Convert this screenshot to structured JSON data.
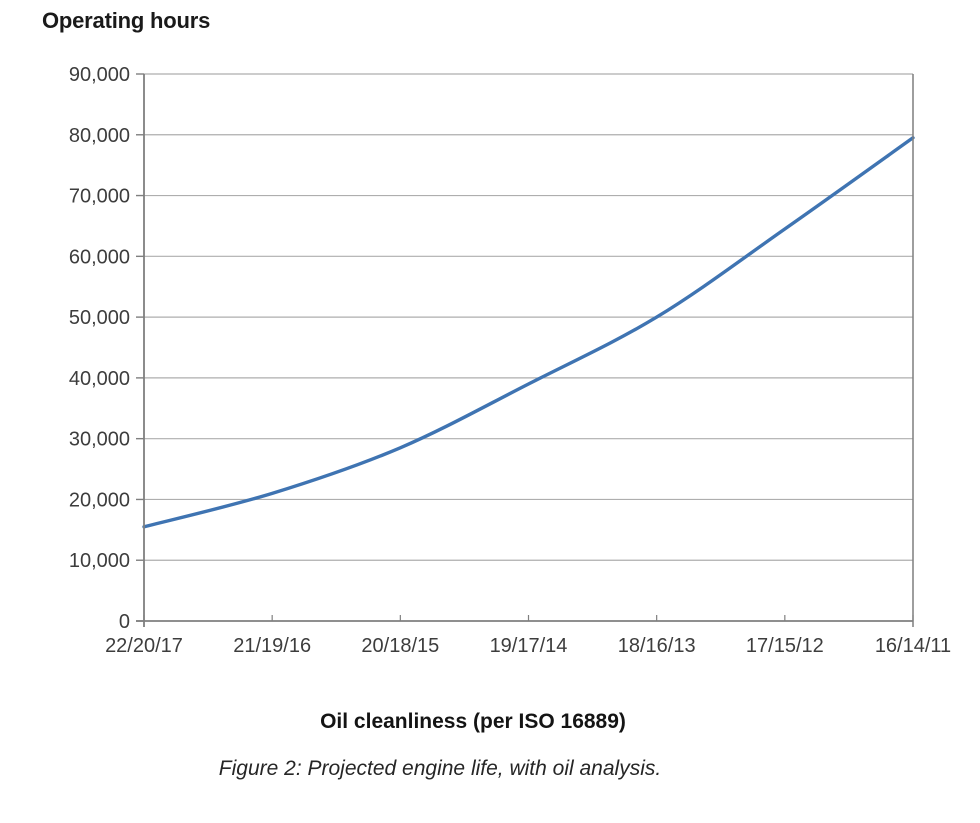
{
  "chart_data": {
    "type": "line",
    "title": "Operating hours",
    "xlabel": "Oil cleanliness (per ISO 16889)",
    "caption": "Figure 2: Projected engine life, with oil analysis.",
    "categories": [
      "22/20/17",
      "21/19/16",
      "20/18/15",
      "19/17/14",
      "18/16/13",
      "17/15/12",
      "16/14/11"
    ],
    "values": [
      15500,
      21000,
      28500,
      39000,
      50000,
      64500,
      79500
    ],
    "ylim": [
      0,
      90000
    ],
    "ytick_values": [
      0,
      10000,
      20000,
      30000,
      40000,
      50000,
      60000,
      70000,
      80000,
      90000
    ],
    "ytick_labels": [
      "0",
      "10,000",
      "20,000",
      "30,000",
      "40,000",
      "50,000",
      "60,000",
      "70,000",
      "80,000",
      "90,000"
    ],
    "grid": "horizontal",
    "legend": "none",
    "line_color": "#3f74b2",
    "grid_color": "#aeaeae",
    "axis_color": "#7f7f7f",
    "label_color": "#3d3d3d"
  }
}
